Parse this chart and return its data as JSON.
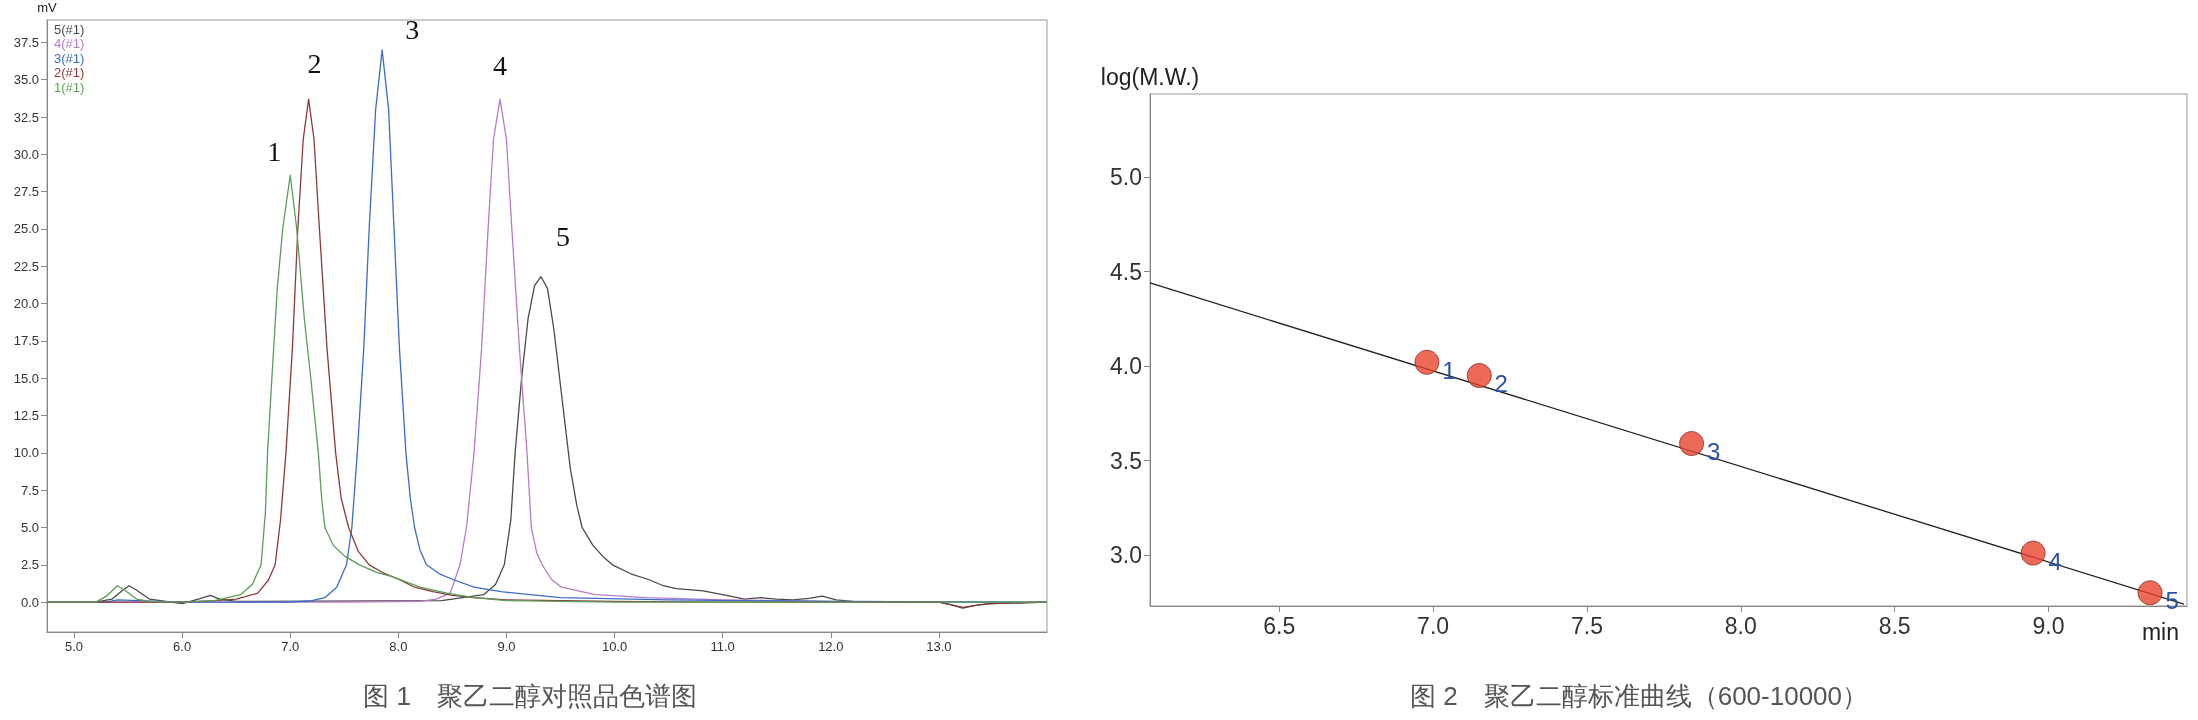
{
  "chart_data": [
    {
      "type": "line",
      "title": "图 1　聚乙二醇对照品色谱图",
      "ylabel": "mV",
      "xlim": [
        4.75,
        14.0
      ],
      "xticks": [
        {
          "value": 5,
          "label": "5.0"
        },
        {
          "value": 6,
          "label": "6.0"
        },
        {
          "value": 7,
          "label": "7.0"
        },
        {
          "value": 8,
          "label": "8.0"
        },
        {
          "value": 9,
          "label": "9.0"
        },
        {
          "value": 10,
          "label": "10.0"
        },
        {
          "value": 11,
          "label": "11.0"
        },
        {
          "value": 12,
          "label": "12.0"
        },
        {
          "value": 13,
          "label": "13.0"
        }
      ],
      "ylim": [
        -2,
        39
      ],
      "yticks": [
        {
          "value": 0,
          "label": "0.0"
        },
        2.5,
        {
          "value": 5,
          "label": "5.0"
        },
        7.5,
        {
          "value": 10,
          "label": "10.0"
        },
        12.5,
        {
          "value": 15,
          "label": "15.0"
        },
        17.5,
        {
          "value": 20,
          "label": "20.0"
        },
        22.5,
        {
          "value": 25,
          "label": "25.0"
        },
        27.5,
        {
          "value": 30,
          "label": "30.0"
        },
        32.5,
        {
          "value": 35,
          "label": "35.0"
        },
        37.5
      ],
      "grid": false,
      "legend": "top left",
      "marker": "none",
      "annotations": [
        {
          "text": "1",
          "x": 7.0,
          "y": 28.6
        },
        {
          "text": "2",
          "x": 7.17,
          "y": 33.7
        },
        {
          "text": "3",
          "x": 7.85,
          "y": 37.0
        },
        {
          "text": "4",
          "x": 8.94,
          "y": 33.7
        },
        {
          "text": "5",
          "x": 9.32,
          "y": 21.8
        }
      ],
      "series": [
        {
          "name": "5(#1)",
          "color": "#4a4a4a",
          "x": [
            4.75,
            5.2,
            5.35,
            5.45,
            5.51,
            5.58,
            5.7,
            5.85,
            6.0,
            6.15,
            6.26,
            6.35,
            6.5,
            8.4,
            8.79,
            8.9,
            8.98,
            9.04,
            9.08,
            9.14,
            9.2,
            9.26,
            9.32,
            9.38,
            9.44,
            9.5,
            9.59,
            9.65,
            9.7,
            9.8,
            9.9,
            9.98,
            10.15,
            10.32,
            10.45,
            10.57,
            10.82,
            11.07,
            11.2,
            11.35,
            11.5,
            11.65,
            11.8,
            11.92,
            12.05,
            12.2,
            12.5,
            13.0,
            13.1,
            13.22,
            13.35,
            13.5,
            14.0
          ],
          "values": [
            0,
            0,
            0.2,
            0.8,
            1.1,
            0.8,
            0.2,
            0.05,
            -0.1,
            0.2,
            0.45,
            0.2,
            0.05,
            0.1,
            0.5,
            1.2,
            2.5,
            5.5,
            10,
            15,
            19,
            21.2,
            21.8,
            21,
            18.2,
            14.5,
            9,
            6.5,
            5,
            3.8,
            3,
            2.5,
            1.9,
            1.5,
            1.1,
            0.9,
            0.75,
            0.4,
            0.2,
            0.3,
            0.2,
            0.15,
            0.25,
            0.4,
            0.15,
            0.05,
            0,
            0,
            -0.15,
            -0.4,
            -0.2,
            -0.1,
            0
          ]
        },
        {
          "name": "4(#1)",
          "color": "#b77ac9",
          "x": [
            4.75,
            7.5,
            8.2,
            8.35,
            8.48,
            8.57,
            8.63,
            8.7,
            8.77,
            8.83,
            8.88,
            8.94,
            9.0,
            9.05,
            9.12,
            9.19,
            9.23,
            9.28,
            9.33,
            9.42,
            9.51,
            9.82,
            10.3,
            11,
            12,
            14.0
          ],
          "values": [
            0,
            0,
            0.05,
            0.2,
            0.6,
            2.5,
            5,
            10,
            17,
            25,
            31,
            33.7,
            31,
            25,
            17,
            10,
            5,
            3.3,
            2.5,
            1.5,
            1.0,
            0.5,
            0.3,
            0.15,
            0.05,
            0
          ]
        },
        {
          "name": "3(#1)",
          "color": "#3a6bc9",
          "x": [
            4.75,
            5.3,
            5.4,
            5.6,
            6.0,
            7.0,
            7.2,
            7.32,
            7.43,
            7.52,
            7.57,
            7.62,
            7.68,
            7.73,
            7.79,
            7.85,
            7.91,
            7.96,
            8.01,
            8.07,
            8.11,
            8.15,
            8.2,
            8.26,
            8.38,
            8.51,
            8.7,
            8.95,
            9.5,
            10.5,
            12,
            14.0
          ],
          "values": [
            0,
            0,
            0.15,
            0.1,
            0,
            0,
            0.1,
            0.3,
            1.0,
            2.5,
            5,
            10,
            17,
            25,
            33,
            37.0,
            33,
            25,
            17,
            10,
            7,
            5,
            3.5,
            2.5,
            1.9,
            1.5,
            1.0,
            0.7,
            0.3,
            0.15,
            0.05,
            0
          ]
        },
        {
          "name": "2(#1)",
          "color": "#8b3a3a",
          "x": [
            4.75,
            6.0,
            6.3,
            6.5,
            6.7,
            6.8,
            6.86,
            6.91,
            6.96,
            7.02,
            7.07,
            7.12,
            7.17,
            7.22,
            7.27,
            7.34,
            7.42,
            7.47,
            7.54,
            7.63,
            7.73,
            7.85,
            8.01,
            8.15,
            8.32,
            8.5,
            8.7,
            9.0,
            10,
            11,
            13.0,
            13.22,
            13.45,
            14.0
          ],
          "values": [
            0,
            0,
            0.1,
            0.2,
            0.6,
            1.5,
            2.5,
            5.5,
            10,
            17,
            25,
            31,
            33.7,
            31,
            25,
            17,
            10,
            7,
            5,
            3.4,
            2.5,
            2.0,
            1.5,
            1.0,
            0.7,
            0.45,
            0.3,
            0.15,
            0.05,
            0,
            0,
            -0.35,
            -0.1,
            0
          ]
        },
        {
          "name": "1(#1)",
          "color": "#5a9e5a",
          "x": [
            4.75,
            5.2,
            5.3,
            5.4,
            5.47,
            5.58,
            5.7,
            6.0,
            6.3,
            6.54,
            6.65,
            6.73,
            6.77,
            6.79,
            6.83,
            6.88,
            6.93,
            7.0,
            7.06,
            7.13,
            7.19,
            7.26,
            7.29,
            7.32,
            7.4,
            7.5,
            7.64,
            7.8,
            7.95,
            8.2,
            8.45,
            8.7,
            9.0,
            10,
            14.0
          ],
          "values": [
            0,
            0,
            0.4,
            1.1,
            0.8,
            0.2,
            0.05,
            0,
            0.1,
            0.5,
            1.2,
            2.5,
            6,
            10,
            15,
            21,
            25,
            28.6,
            25,
            19,
            15,
            10,
            7,
            5,
            3.8,
            3.1,
            2.5,
            2.0,
            1.7,
            1.0,
            0.6,
            0.3,
            0.1,
            0,
            0
          ]
        }
      ]
    },
    {
      "type": "scatter",
      "title": "图 2　聚乙二醇标准曲线（600-10000）",
      "xlabel": "min",
      "ylabel": "log(M.W.)",
      "xlim": [
        6.08,
        9.45
      ],
      "xticks": [
        {
          "value": 6.5,
          "label": "6.5"
        },
        {
          "value": 7,
          "label": "7.0"
        },
        {
          "value": 7.5,
          "label": "7.5"
        },
        {
          "value": 8,
          "label": "8.0"
        },
        {
          "value": 8.5,
          "label": "8.5"
        },
        {
          "value": 9,
          "label": "9.0"
        }
      ],
      "ylim": [
        2.73,
        5.44
      ],
      "yticks": [
        {
          "value": 3,
          "label": "3.0"
        },
        {
          "value": 3.5,
          "label": "3.5"
        },
        {
          "value": 4,
          "label": "4.0"
        },
        {
          "value": 4.5,
          "label": "4.5"
        },
        {
          "value": 5,
          "label": "5.0"
        }
      ],
      "grid": false,
      "marker": "circle",
      "annotations": [
        {
          "text": "1",
          "x": 6.98,
          "y": 4.02
        },
        {
          "text": "2",
          "x": 7.15,
          "y": 3.95
        },
        {
          "text": "3",
          "x": 7.84,
          "y": 3.59
        },
        {
          "text": "4",
          "x": 8.95,
          "y": 3.01
        },
        {
          "text": "5",
          "x": 9.33,
          "y": 2.8
        }
      ],
      "series": [
        {
          "color": "#e8452f",
          "x": [
            6.98,
            7.15,
            7.84,
            8.95,
            9.33
          ],
          "values": [
            4.02,
            3.95,
            3.59,
            3.01,
            2.8
          ]
        },
        {
          "type": "line",
          "color": "#222222",
          "marker": "none",
          "x": [
            6.08,
            9.44
          ],
          "values": [
            4.44,
            2.74
          ]
        }
      ]
    }
  ]
}
